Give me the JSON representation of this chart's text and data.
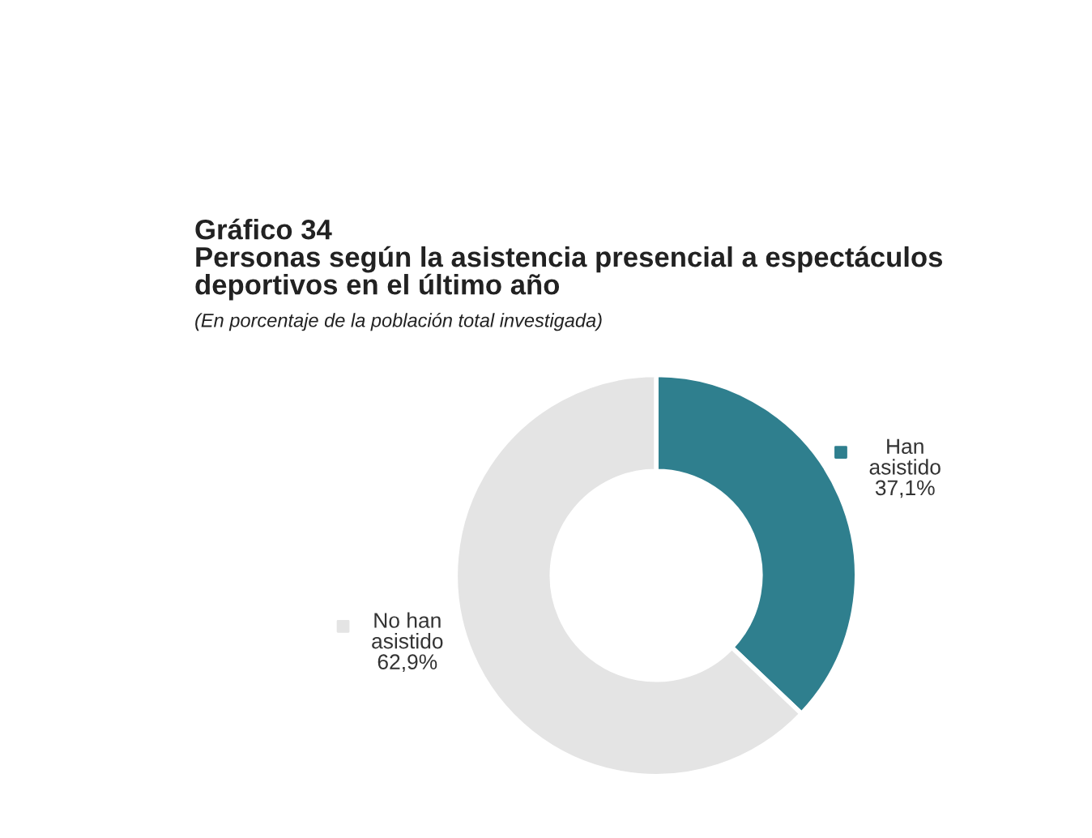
{
  "chart_data": {
    "type": "donut",
    "title": "Gráfico 34\nPersonas según la asistencia presencial a espectáculos\ndeportivos en el último año",
    "subtitle": "(En porcentaje de la población total investigada)",
    "categories": [
      "Han asistido",
      "No han asistido"
    ],
    "values": [
      37.1,
      62.9
    ],
    "colors": [
      "#2f7f8e",
      "#e4e4e4"
    ],
    "value_labels": [
      "37,1%",
      "62,9%"
    ],
    "legend": "right"
  }
}
